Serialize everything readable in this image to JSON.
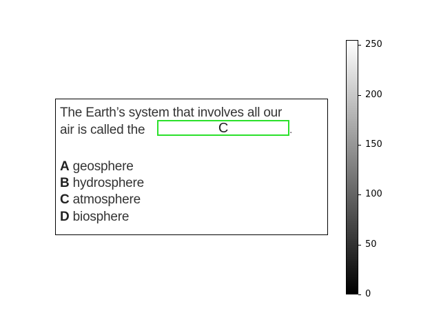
{
  "worksheet": {
    "question_line1": "The Earth’s system that involves all our",
    "question_line2_prefix": "air is called the",
    "answer": "C",
    "period": ".",
    "options": [
      {
        "letter": "A",
        "text": "geosphere"
      },
      {
        "letter": "B",
        "text": "hydrosphere"
      },
      {
        "letter": "C",
        "text": "atmosphere"
      },
      {
        "letter": "D",
        "text": "biosphere"
      }
    ],
    "highlight_color": "#2ae02a"
  },
  "chart_data": {
    "type": "heatmap",
    "colormap": "gray",
    "colorbar": {
      "vmin": 0,
      "vmax": 255,
      "ticks": [
        "0",
        "50",
        "100",
        "150",
        "200",
        "250"
      ]
    }
  }
}
